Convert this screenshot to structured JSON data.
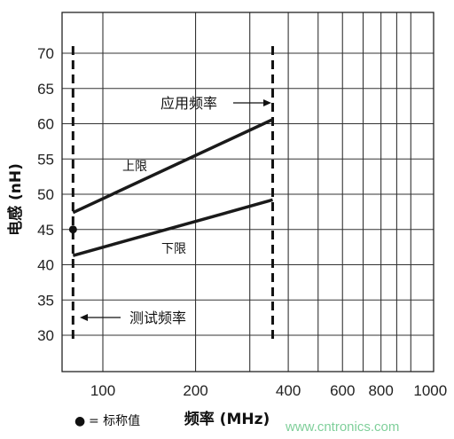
{
  "chart_data": {
    "type": "line",
    "xlabel": "频率 (MHz)",
    "ylabel": "电感 (nH)",
    "ylim": [
      25,
      80
    ],
    "x_ticks": [
      100,
      200,
      400,
      600,
      800,
      1000
    ],
    "y_ticks": [
      30,
      35,
      40,
      45,
      50,
      55,
      60,
      65,
      70
    ],
    "grid": true,
    "series": [
      {
        "name": "上限",
        "x": [
          80,
          356
        ],
        "y": [
          47.4,
          60.6
        ]
      },
      {
        "name": "下限",
        "x": [
          80,
          356
        ],
        "y": [
          41.3,
          49.2
        ]
      }
    ],
    "nominal_point": {
      "x": 80,
      "y": 45
    },
    "markers": {
      "test_frequency": 80,
      "application_frequency": 356
    },
    "annotations": {
      "upper": "上限",
      "lower": "下限",
      "app_freq": "应用频率",
      "test_freq": "测试频率"
    },
    "legend": {
      "symbol": "●",
      "text": "= 标称值"
    }
  },
  "watermark": "www.cntronics.com"
}
